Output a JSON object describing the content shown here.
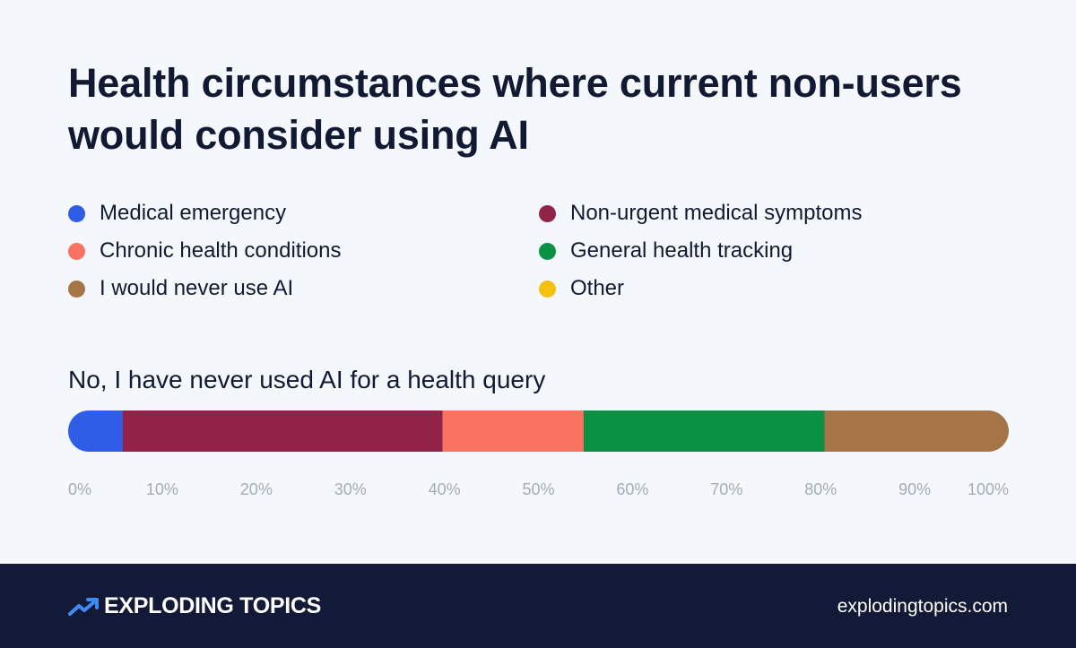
{
  "chart_data": {
    "type": "bar",
    "orientation": "horizontal-stacked",
    "title": "Health circumstances where current non-users would consider using AI",
    "categories": [
      "No, I have never used AI for a health query"
    ],
    "series": [
      {
        "name": "Medical emergency",
        "color": "#2e5de6",
        "values": [
          5.8
        ]
      },
      {
        "name": "Non-urgent medical symptoms",
        "color": "#922348",
        "values": [
          34.0
        ]
      },
      {
        "name": "Chronic health conditions",
        "color": "#fa7360",
        "values": [
          15.0
        ]
      },
      {
        "name": "General health tracking",
        "color": "#0a9143",
        "values": [
          25.6
        ]
      },
      {
        "name": "I would never use AI",
        "color": "#a57547",
        "values": [
          19.6
        ]
      },
      {
        "name": "Other",
        "color": "#f5c10e",
        "values": [
          0
        ]
      }
    ],
    "xlim": [
      0,
      100
    ],
    "xticks": [
      "0%",
      "10%",
      "20%",
      "30%",
      "40%",
      "50%",
      "60%",
      "70%",
      "80%",
      "90%",
      "100%"
    ],
    "legend_position": "top",
    "legend_order": [
      "Medical emergency",
      "Non-urgent medical symptoms",
      "Chronic health conditions",
      "General health tracking",
      "I would never use AI",
      "Other"
    ],
    "grid": false
  },
  "footer": {
    "brand": "EXPLODING TOPICS",
    "logo_icon": "trending-up-arrow-icon",
    "website": "explodingtopics.com"
  }
}
